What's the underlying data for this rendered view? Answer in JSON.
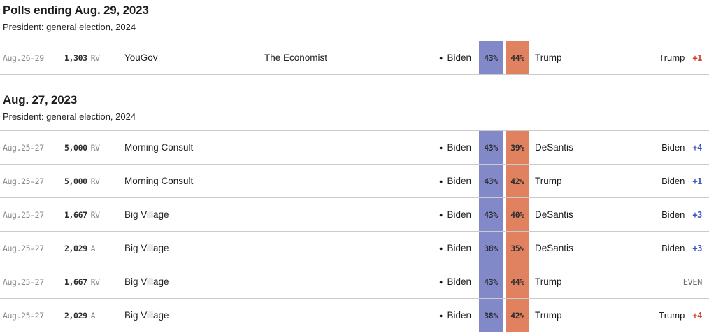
{
  "colors": {
    "dem_band": "#8289c9",
    "rep_band": "#e0815f",
    "dem_margin": "#3b52c4",
    "rep_margin": "#d0402c",
    "even_margin": "#6e6e6e",
    "row_divider": "#cbcbcb",
    "vertical_rule": "#3d3d3d"
  },
  "incumbent_marker": "●",
  "sections": [
    {
      "title": "Polls ending Aug. 29, 2023",
      "subtitle": "President: general election, 2024",
      "rows": [
        {
          "dates": "Aug.26-29",
          "sample_value": "1,303",
          "sample_type": "RV",
          "pollster": "YouGov",
          "sponsor": "The Economist",
          "cand1": "Biden",
          "cand1_pct": "43%",
          "cand2_pct": "44%",
          "cand2": "Trump",
          "leader_name": "Trump",
          "leader_margin": "+1",
          "leader_party": "rep"
        }
      ]
    },
    {
      "title": "Aug. 27, 2023",
      "subtitle": "President: general election, 2024",
      "rows": [
        {
          "dates": "Aug.25-27",
          "sample_value": "5,000",
          "sample_type": "RV",
          "pollster": "Morning Consult",
          "sponsor": "",
          "cand1": "Biden",
          "cand1_pct": "43%",
          "cand2_pct": "39%",
          "cand2": "DeSantis",
          "leader_name": "Biden",
          "leader_margin": "+4",
          "leader_party": "dem"
        },
        {
          "dates": "Aug.25-27",
          "sample_value": "5,000",
          "sample_type": "RV",
          "pollster": "Morning Consult",
          "sponsor": "",
          "cand1": "Biden",
          "cand1_pct": "43%",
          "cand2_pct": "42%",
          "cand2": "Trump",
          "leader_name": "Biden",
          "leader_margin": "+1",
          "leader_party": "dem"
        },
        {
          "dates": "Aug.25-27",
          "sample_value": "1,667",
          "sample_type": "RV",
          "pollster": "Big Village",
          "sponsor": "",
          "cand1": "Biden",
          "cand1_pct": "43%",
          "cand2_pct": "40%",
          "cand2": "DeSantis",
          "leader_name": "Biden",
          "leader_margin": "+3",
          "leader_party": "dem"
        },
        {
          "dates": "Aug.25-27",
          "sample_value": "2,029",
          "sample_type": "A",
          "pollster": "Big Village",
          "sponsor": "",
          "cand1": "Biden",
          "cand1_pct": "38%",
          "cand2_pct": "35%",
          "cand2": "DeSantis",
          "leader_name": "Biden",
          "leader_margin": "+3",
          "leader_party": "dem"
        },
        {
          "dates": "Aug.25-27",
          "sample_value": "1,667",
          "sample_type": "RV",
          "pollster": "Big Village",
          "sponsor": "",
          "cand1": "Biden",
          "cand1_pct": "43%",
          "cand2_pct": "44%",
          "cand2": "Trump",
          "leader_name": "",
          "leader_margin": "EVEN",
          "leader_party": "even"
        },
        {
          "dates": "Aug.25-27",
          "sample_value": "2,029",
          "sample_type": "A",
          "pollster": "Big Village",
          "sponsor": "",
          "cand1": "Biden",
          "cand1_pct": "38%",
          "cand2_pct": "42%",
          "cand2": "Trump",
          "leader_name": "Trump",
          "leader_margin": "+4",
          "leader_party": "rep"
        }
      ]
    }
  ]
}
